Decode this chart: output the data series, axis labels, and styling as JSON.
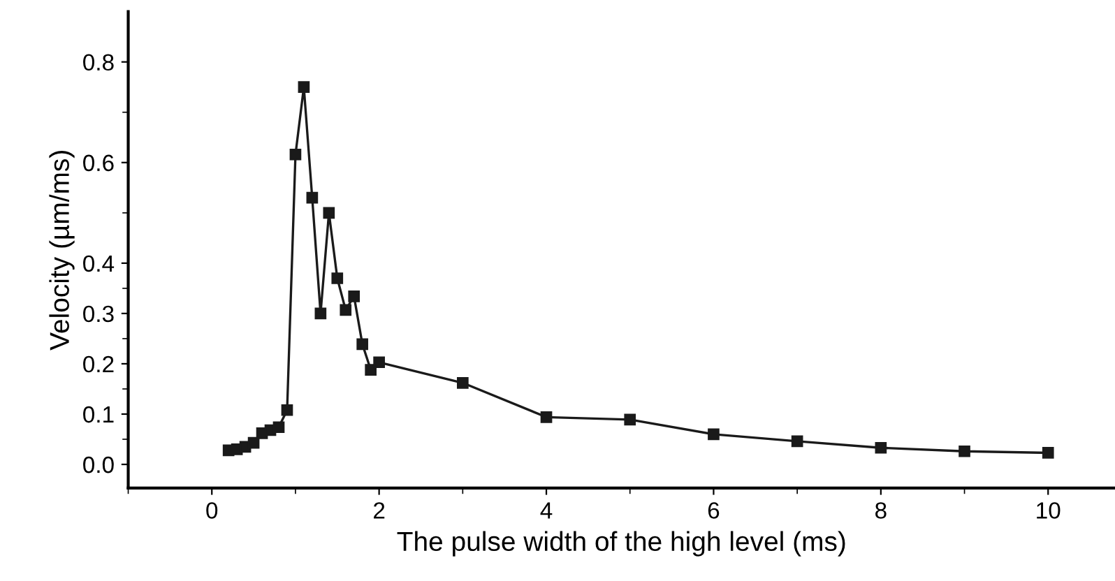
{
  "chart_data": {
    "type": "line",
    "xlabel": "The pulse width of the high level (ms)",
    "ylabel": "Velocity (µm/ms)",
    "x": [
      0.2,
      0.3,
      0.4,
      0.5,
      0.6,
      0.7,
      0.8,
      0.9,
      1.0,
      1.1,
      1.2,
      1.3,
      1.4,
      1.5,
      1.6,
      1.7,
      1.8,
      1.9,
      2.0,
      3.0,
      4.0,
      5.0,
      6.0,
      7.0,
      8.0,
      9.0,
      10.0
    ],
    "series": [
      {
        "color": "#1a1a1a",
        "values": [
          0.028,
          0.03,
          0.035,
          0.043,
          0.062,
          0.068,
          0.074,
          0.108,
          0.616,
          0.75,
          0.53,
          0.3,
          0.5,
          0.37,
          0.307,
          0.334,
          0.239,
          0.188,
          0.203,
          0.162,
          0.094,
          0.089,
          0.06,
          0.046,
          0.033,
          0.026,
          0.023
        ]
      }
    ],
    "xlim": [
      -1,
      10.8
    ],
    "xticks": [
      0,
      2,
      4,
      6,
      8,
      10
    ],
    "ylim": [
      -0.047,
      0.9
    ],
    "yticks": [
      {
        "value": 0,
        "label": "0.0"
      },
      0.1,
      0.2,
      0.3,
      0.4,
      0.6,
      0.8
    ],
    "marker": "square",
    "line_style": "solid",
    "grid": false,
    "legend": false
  }
}
